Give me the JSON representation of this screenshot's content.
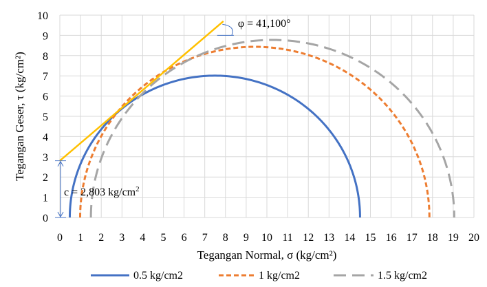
{
  "chart_data": {
    "type": "line",
    "subtype": "mohr-circles",
    "xlabel": "Tegangan Normal, σ (kg/cm²)",
    "ylabel": "Tegangan Geser, τ (kg/cm²)",
    "xlim": [
      0,
      20
    ],
    "ylim": [
      0,
      10
    ],
    "xticks": [
      "0",
      "1",
      "2",
      "3",
      "4",
      "5",
      "6",
      "7",
      "8",
      "9",
      "10",
      "11",
      "12",
      "13",
      "14",
      "15",
      "16",
      "17",
      "18",
      "19",
      "20"
    ],
    "yticks": [
      "0",
      "1",
      "2",
      "3",
      "4",
      "5",
      "6",
      "7",
      "8",
      "9",
      "10"
    ],
    "grid": true,
    "legend_position": "bottom",
    "series": [
      {
        "name": "0.5 kg/cm2",
        "color": "#4472C4",
        "style": "solid",
        "sigma3": 0.48,
        "sigma1": 14.5
      },
      {
        "name": "1 kg/cm2",
        "color": "#ED7D31",
        "style": "dashed",
        "sigma3": 0.98,
        "sigma1": 17.85
      },
      {
        "name": "1.5 kg/cm2",
        "color": "#A5A5A5",
        "style": "long-dashed",
        "sigma3": 1.5,
        "sigma1": 19.05
      }
    ],
    "envelope": {
      "color": "#FFC000",
      "points": [
        [
          0,
          2.803
        ],
        [
          7.9,
          9.7
        ]
      ]
    },
    "annotations": {
      "phi_label": "φ = 41,100°",
      "cohesion_label": "c = 2,803 kg/cm"
    }
  }
}
